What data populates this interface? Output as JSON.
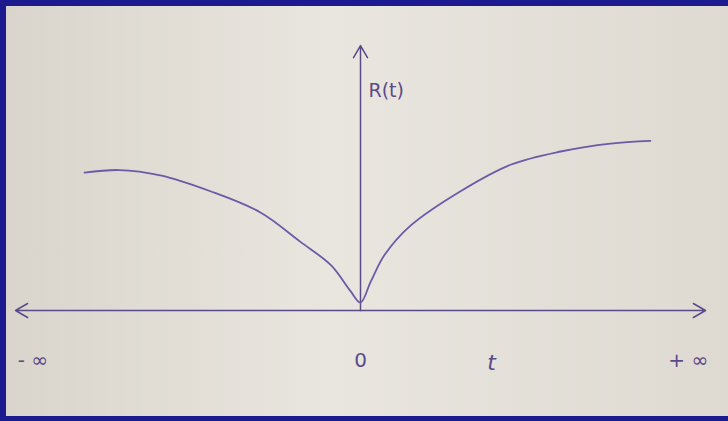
{
  "chart_data": {
    "type": "line",
    "xlabel": "t",
    "ylabel": "R(t)",
    "x": [
      -8,
      -7,
      -5.8,
      -4.35,
      -2.9,
      -1.75,
      -0.85,
      -0.3,
      0,
      0.3,
      0.7,
      1.45,
      2.9,
      4.35,
      5.8,
      7.25,
      8.4
    ],
    "values": [
      5.2,
      5.3,
      5.1,
      4.5,
      3.7,
      2.6,
      1.7,
      0.75,
      0.3,
      1.1,
      2.1,
      3.2,
      4.5,
      5.5,
      6.0,
      6.3,
      6.4
    ],
    "color": "#6b5aa6",
    "xlim": [
      -10,
      10
    ],
    "xticks": [
      {
        "value": -9.5,
        "label": "- ∞"
      },
      0,
      {
        "value": 9.5,
        "label": "+ ∞"
      }
    ],
    "ylim": [
      0,
      10
    ],
    "tick_labels": "x",
    "grid": false
  }
}
